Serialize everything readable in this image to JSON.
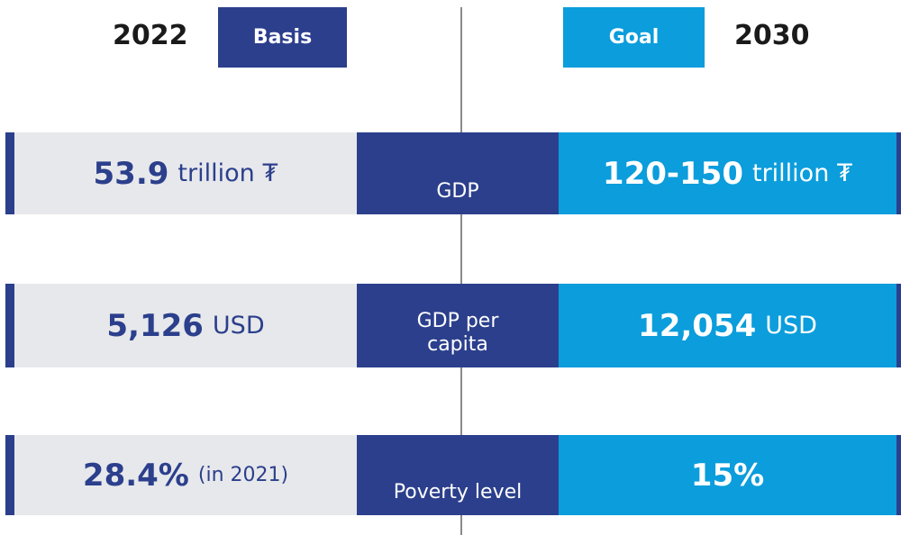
{
  "header": {
    "left_year": "2022",
    "left_label": "Basis",
    "right_label": "Goal",
    "right_year": "2030"
  },
  "rows": [
    {
      "baseline_value": "53.9",
      "baseline_unit": "trillion ₮",
      "indicator": [
        "GDP"
      ],
      "goal_value": "120-150",
      "goal_unit": "trillion ₮"
    },
    {
      "baseline_value": "5,126",
      "baseline_unit": "USD",
      "indicator": [
        "GDP per",
        "capita"
      ],
      "goal_value": "12,054",
      "goal_unit": "USD"
    },
    {
      "baseline_value": "28.4%",
      "baseline_unit": "(in 2021)",
      "indicator": [
        "Poverty level"
      ],
      "goal_value": "15%"
    }
  ]
}
